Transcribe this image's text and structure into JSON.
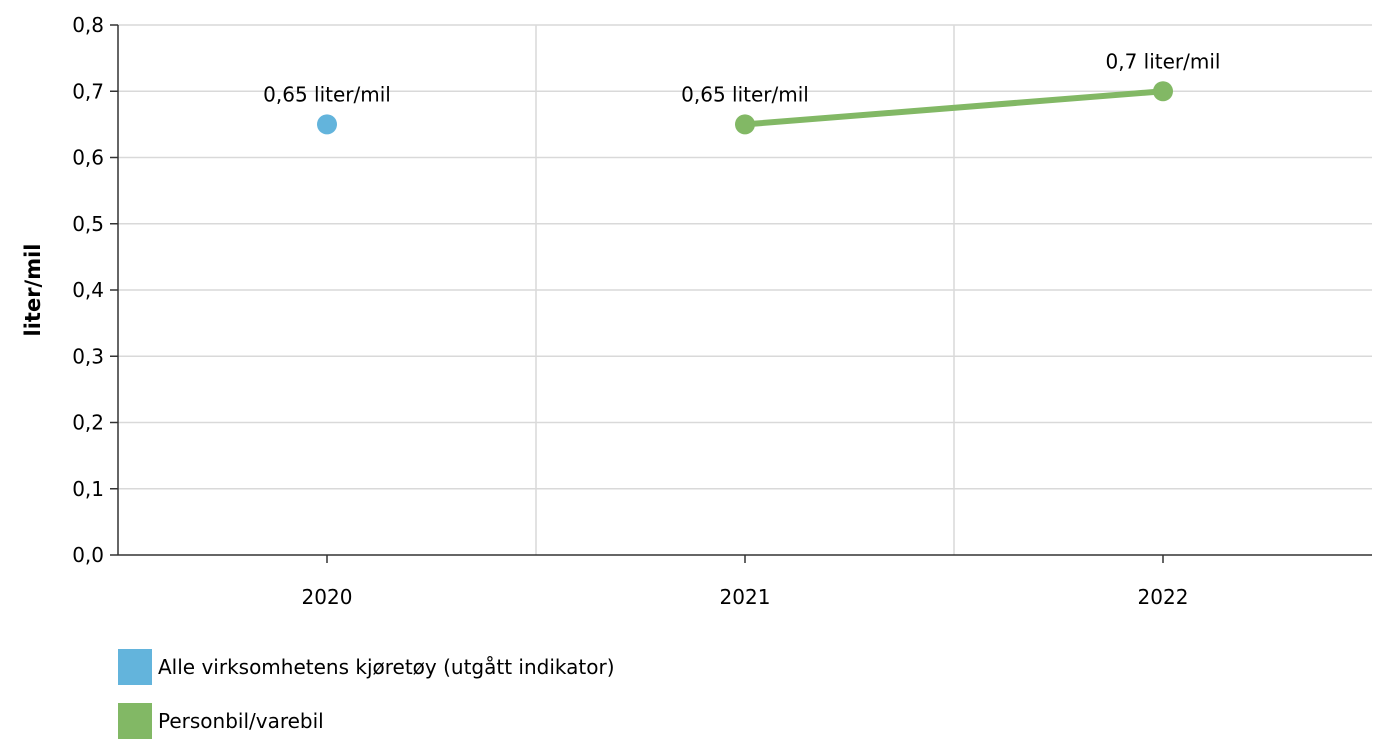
{
  "chart_data": {
    "type": "line",
    "x_categories": [
      "2020",
      "2021",
      "2022"
    ],
    "ylabel": "liter/mil",
    "ylim": [
      0,
      0.8
    ],
    "y_ticks": [
      "0,0",
      "0,1",
      "0,2",
      "0,3",
      "0,4",
      "0,5",
      "0,6",
      "0,7",
      "0,8"
    ],
    "y_tick_values": [
      0,
      0.1,
      0.2,
      0.3,
      0.4,
      0.5,
      0.6,
      0.7,
      0.8
    ],
    "grid": true,
    "legend_position": "bottom-left",
    "series": [
      {
        "name": "Alle virksomhetens kjøretøy (utgått indikator)",
        "color": "#63b4dc",
        "points": [
          {
            "x": "2020",
            "y": 0.65,
            "label": "0,65 liter/mil"
          }
        ]
      },
      {
        "name": "Personbil/varebil",
        "color": "#82b865",
        "points": [
          {
            "x": "2021",
            "y": 0.65,
            "label": "0,65 liter/mil"
          },
          {
            "x": "2022",
            "y": 0.7,
            "label": "0,7 liter/mil"
          }
        ]
      }
    ]
  }
}
